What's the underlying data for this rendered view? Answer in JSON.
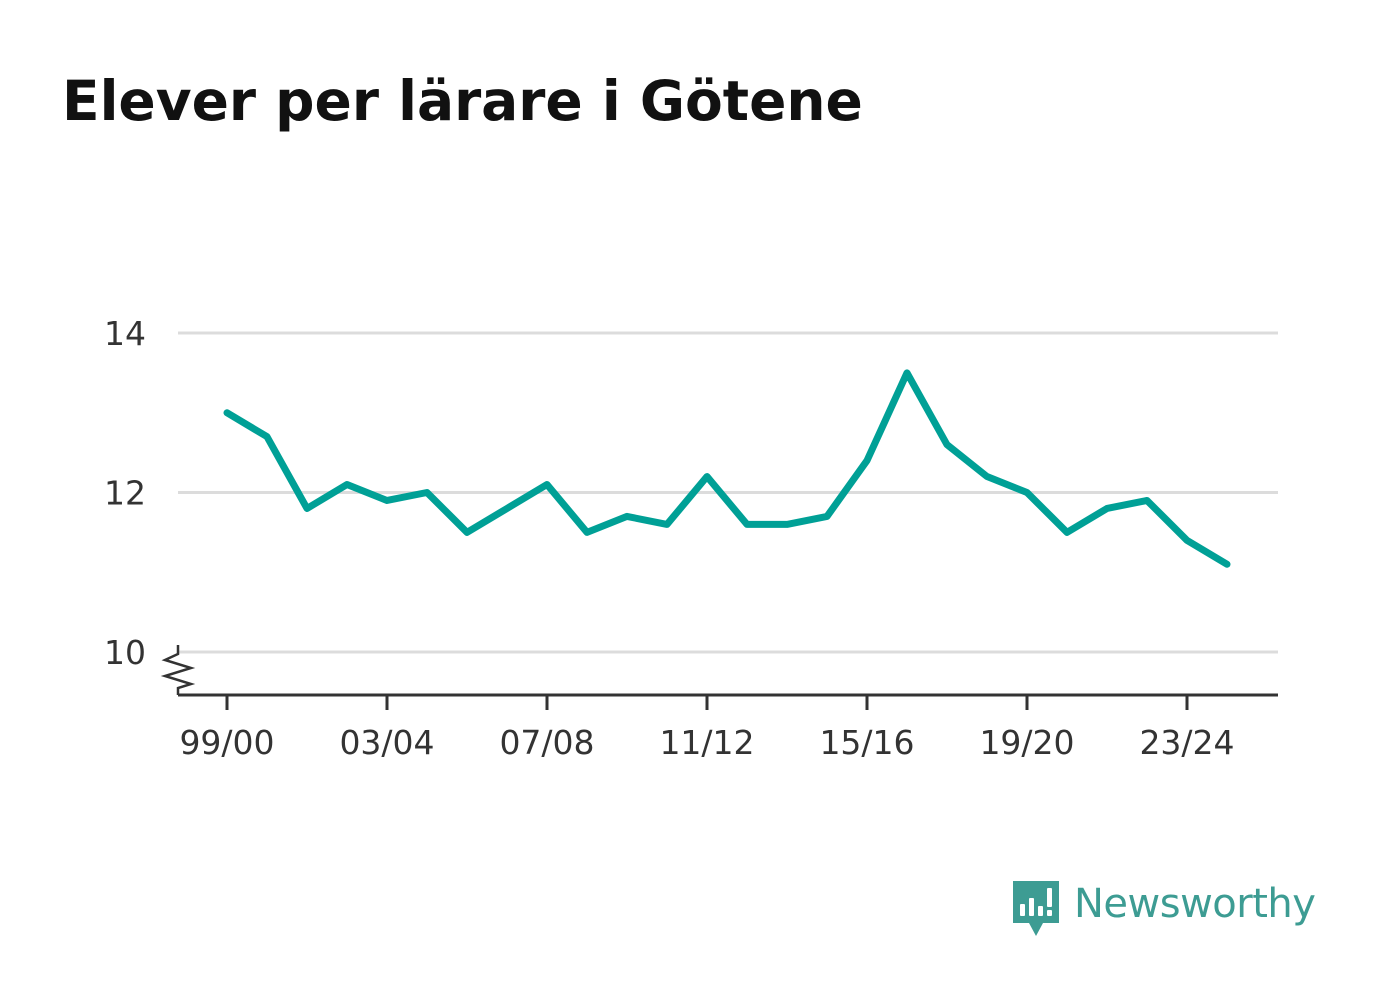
{
  "header": {
    "title": "Elever per lärare i Götene"
  },
  "branding": {
    "logo_text": "Newsworthy",
    "logo_icon": "bar-chart-speech-bubble-icon",
    "color": "#3d9c93"
  },
  "chart_data": {
    "type": "line",
    "title": "Elever per lärare i Götene",
    "xlabel": "",
    "ylabel": "",
    "ylim": [
      9.45,
      14
    ],
    "y_axis_break": true,
    "grid": true,
    "x": [
      "99/00",
      "00/01",
      "01/02",
      "02/03",
      "03/04",
      "04/05",
      "05/06",
      "06/07",
      "07/08",
      "08/09",
      "09/10",
      "10/11",
      "11/12",
      "12/13",
      "13/14",
      "14/15",
      "15/16",
      "16/17",
      "17/18",
      "18/19",
      "19/20",
      "20/21",
      "21/22",
      "22/23",
      "23/24",
      "24/25"
    ],
    "x_tick_labels": [
      "99/00",
      "03/04",
      "07/08",
      "11/12",
      "15/16",
      "19/20",
      "23/24"
    ],
    "y_ticks": [
      10,
      12,
      14
    ],
    "series": [
      {
        "color": "#00a096",
        "values": [
          13.0,
          12.7,
          11.8,
          12.1,
          11.9,
          12.0,
          11.5,
          11.8,
          12.1,
          11.5,
          11.7,
          11.6,
          12.2,
          11.6,
          11.6,
          11.7,
          12.4,
          13.5,
          12.6,
          12.2,
          12.0,
          11.5,
          11.8,
          11.9,
          11.4,
          11.1
        ]
      }
    ]
  }
}
